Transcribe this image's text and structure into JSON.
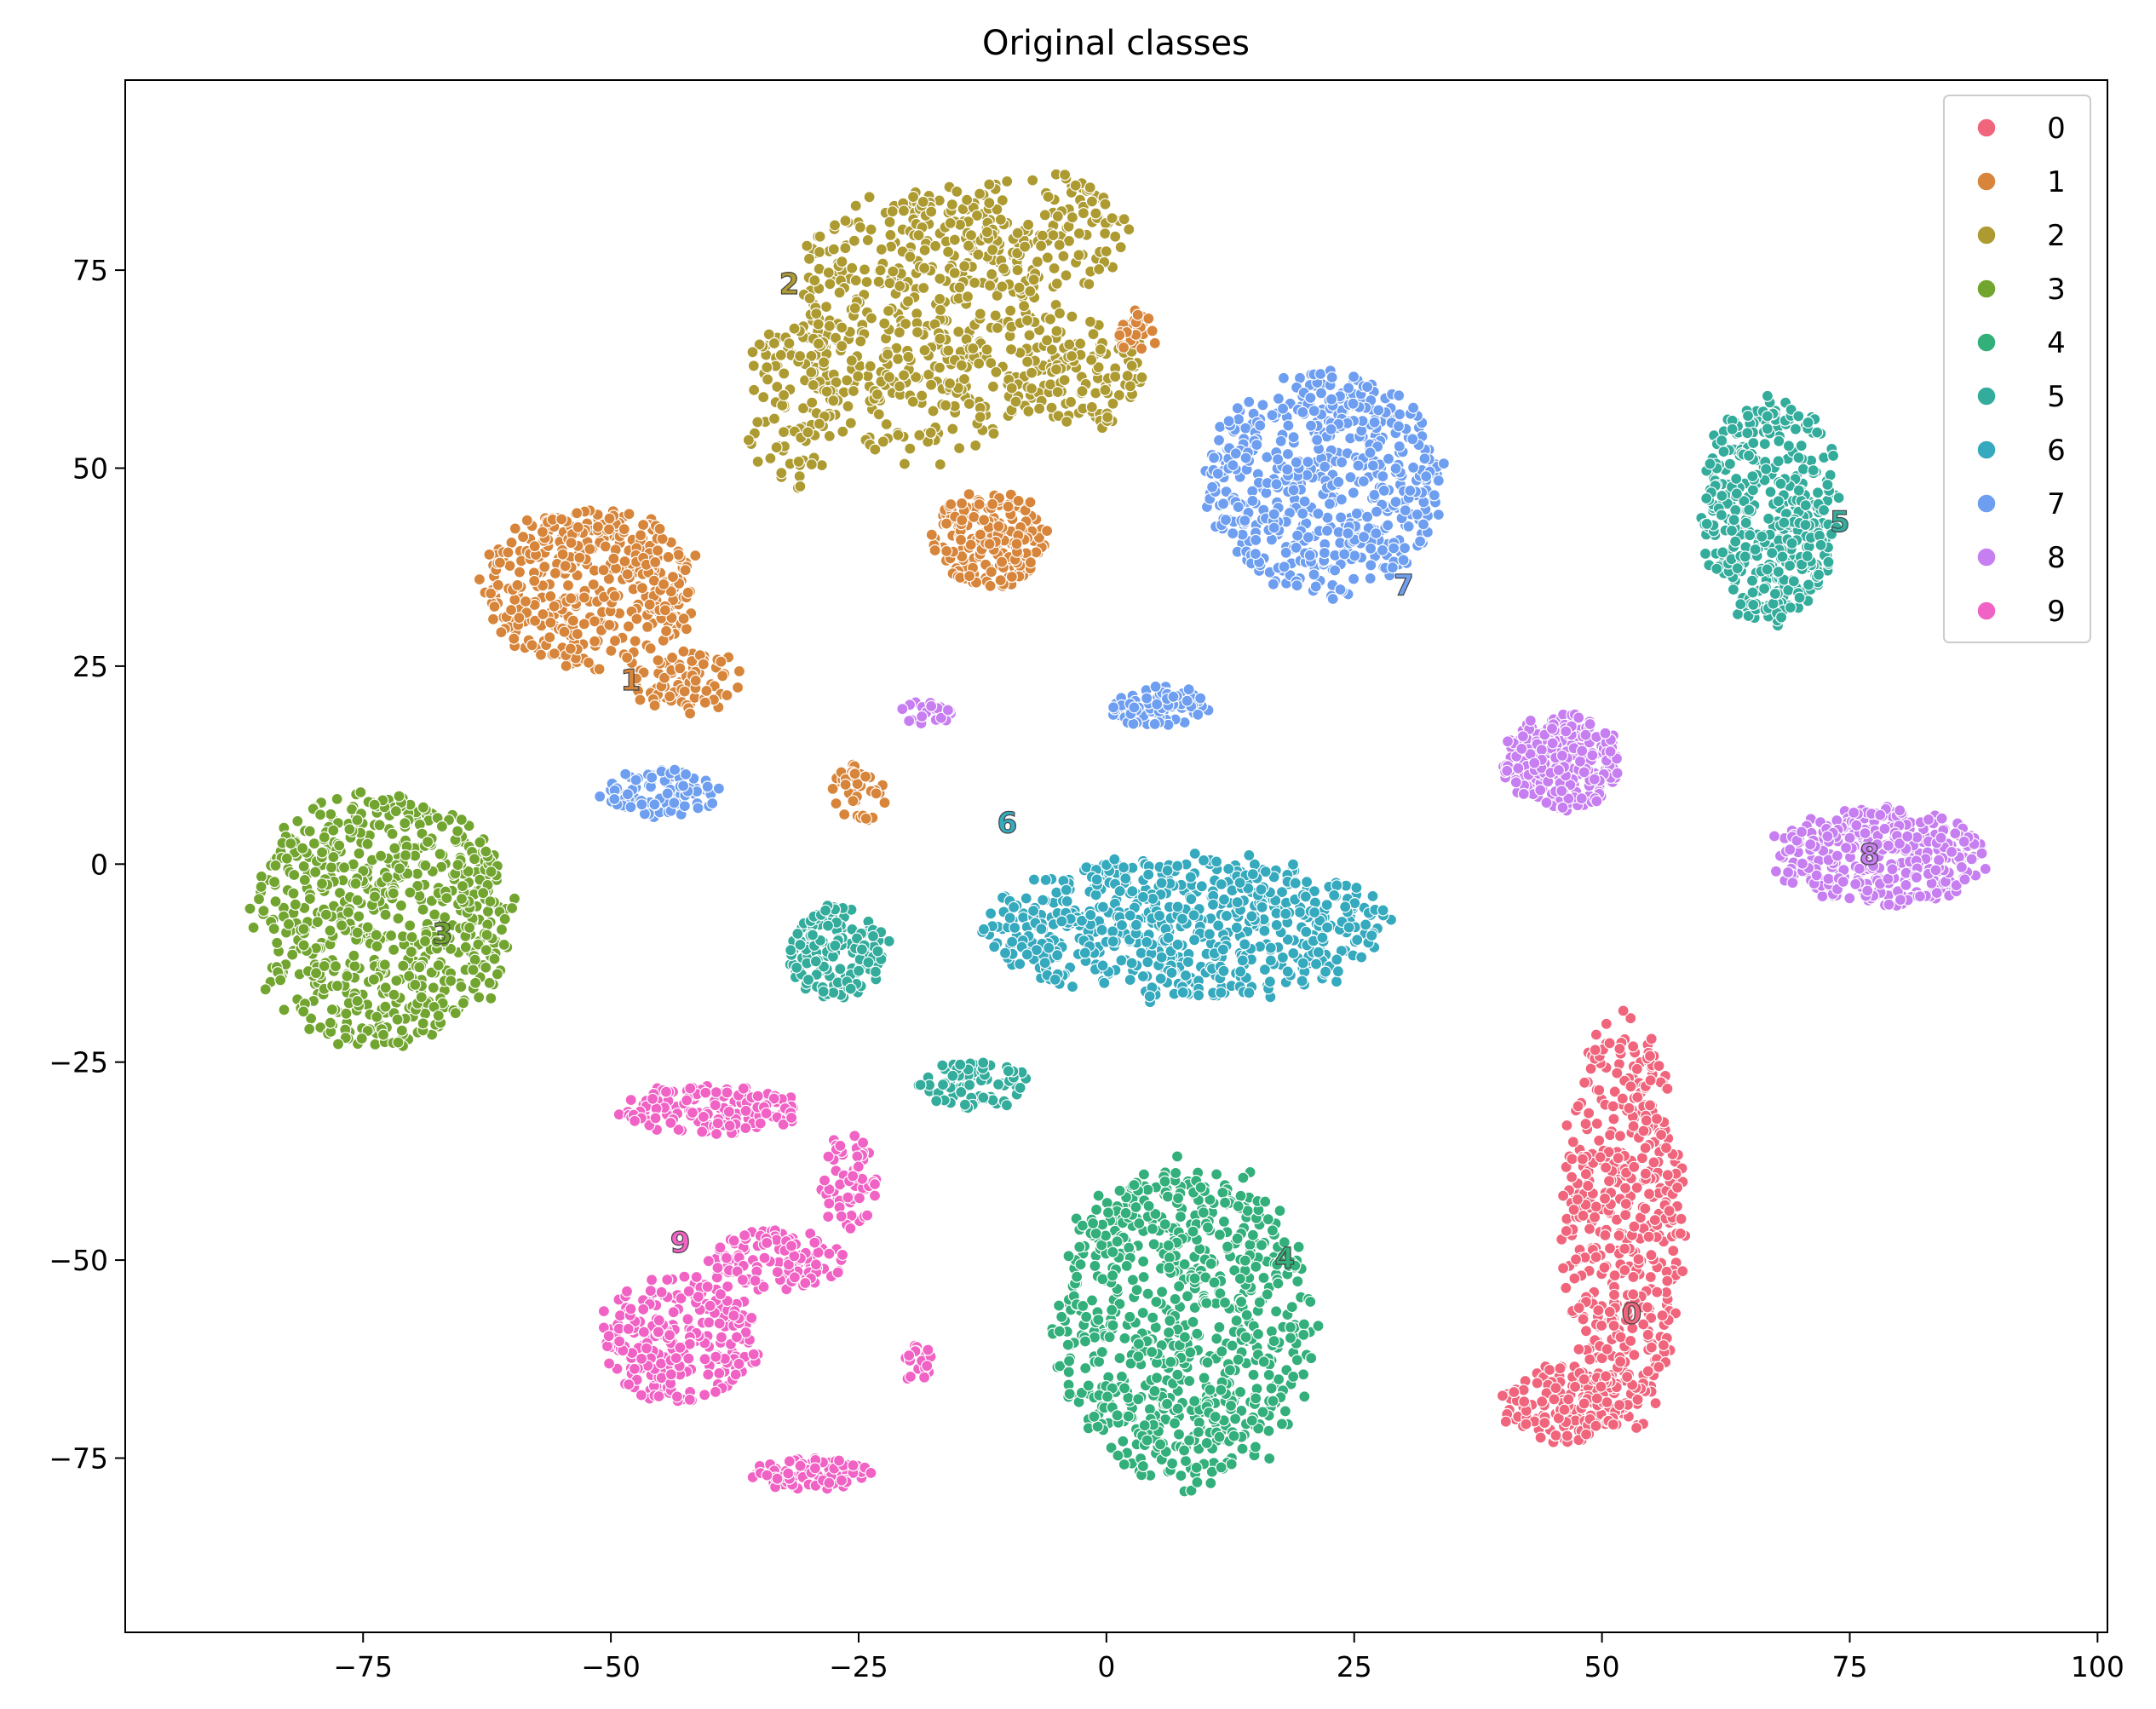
{
  "chart_data": {
    "type": "scatter",
    "title": "Original classes",
    "xlabel": "",
    "ylabel": "",
    "xlim": [
      -99,
      101
    ],
    "ylim": [
      -97,
      99
    ],
    "x_ticks": [
      -75,
      -50,
      -25,
      0,
      25,
      50,
      75,
      100
    ],
    "y_ticks": [
      75,
      50,
      25,
      0,
      -25,
      -50,
      -75
    ],
    "x_tick_labels": [
      "−75",
      "−50",
      "−25",
      "0",
      "25",
      "50",
      "75",
      "100"
    ],
    "y_tick_labels": [
      "75",
      "50",
      "25",
      "0",
      "−25",
      "−50",
      "−75"
    ],
    "grid": false,
    "legend_position": "top-right",
    "series": [
      {
        "name": "0",
        "color": "#f0657c"
      },
      {
        "name": "1",
        "color": "#d7853a"
      },
      {
        "name": "2",
        "color": "#ad9b32"
      },
      {
        "name": "3",
        "color": "#72a530"
      },
      {
        "name": "4",
        "color": "#32af7a"
      },
      {
        "name": "5",
        "color": "#33ac9c"
      },
      {
        "name": "6",
        "color": "#35a9bd"
      },
      {
        "name": "7",
        "color": "#6e9ef0"
      },
      {
        "name": "8",
        "color": "#c77ef0"
      },
      {
        "name": "9",
        "color": "#f162c5"
      }
    ],
    "clusters": [
      {
        "cls": 2,
        "cx": -18,
        "cy": 68,
        "rx": 14,
        "ry": 17,
        "n": 500
      },
      {
        "cls": 2,
        "cx": -32,
        "cy": 58,
        "rx": 5,
        "ry": 10,
        "n": 110
      },
      {
        "cls": 2,
        "cx": -7,
        "cy": 80,
        "rx": 9,
        "ry": 8,
        "n": 130
      },
      {
        "cls": 2,
        "cx": -2,
        "cy": 62,
        "rx": 6,
        "ry": 7,
        "n": 110
      },
      {
        "cls": 1,
        "cx": -52,
        "cy": 35,
        "rx": 11,
        "ry": 10,
        "n": 420
      },
      {
        "cls": 1,
        "cx": -42,
        "cy": 23,
        "rx": 6,
        "ry": 4,
        "n": 80
      },
      {
        "cls": 1,
        "cx": -12,
        "cy": 41,
        "rx": 6,
        "ry": 6,
        "n": 180
      },
      {
        "cls": 1,
        "cx": 3,
        "cy": 67,
        "rx": 2,
        "ry": 3,
        "n": 25
      },
      {
        "cls": 1,
        "cx": -25,
        "cy": 9,
        "rx": 3,
        "ry": 4,
        "n": 40
      },
      {
        "cls": 7,
        "cx": 22,
        "cy": 48,
        "rx": 12,
        "ry": 14,
        "n": 560
      },
      {
        "cls": 7,
        "cx": -45,
        "cy": 9,
        "rx": 6,
        "ry": 3,
        "n": 90
      },
      {
        "cls": 7,
        "cx": 5,
        "cy": 20,
        "rx": 5,
        "ry": 2.5,
        "n": 80
      },
      {
        "cls": 5,
        "cx": 67,
        "cy": 45,
        "rx": 7,
        "ry": 14,
        "n": 420
      },
      {
        "cls": 5,
        "cx": -27,
        "cy": -11,
        "rx": 5,
        "ry": 6,
        "n": 150
      },
      {
        "cls": 5,
        "cx": -13,
        "cy": -28,
        "rx": 6,
        "ry": 3,
        "n": 80
      },
      {
        "cls": 3,
        "cx": -73,
        "cy": -7,
        "rx": 13,
        "ry": 16,
        "n": 650
      },
      {
        "cls": 6,
        "cx": 8,
        "cy": -8,
        "rx": 20,
        "ry": 9,
        "n": 650
      },
      {
        "cls": 8,
        "cx": 46,
        "cy": 13,
        "rx": 6,
        "ry": 6,
        "n": 280
      },
      {
        "cls": 8,
        "cx": 78,
        "cy": 1,
        "rx": 11,
        "ry": 6,
        "n": 360
      },
      {
        "cls": 8,
        "cx": -18,
        "cy": 19,
        "rx": 3,
        "ry": 1.5,
        "n": 20
      },
      {
        "cls": 0,
        "cx": 52,
        "cy": -45,
        "rx": 6,
        "ry": 26,
        "n": 480
      },
      {
        "cls": 0,
        "cx": 46,
        "cy": -68,
        "rx": 6,
        "ry": 5,
        "n": 150
      },
      {
        "cls": 4,
        "cx": 8,
        "cy": -58,
        "rx": 13,
        "ry": 20,
        "n": 750
      },
      {
        "cls": 9,
        "cx": -43,
        "cy": -60,
        "rx": 8,
        "ry": 8,
        "n": 260
      },
      {
        "cls": 9,
        "cx": -33,
        "cy": -50,
        "rx": 7,
        "ry": 4,
        "n": 120
      },
      {
        "cls": 9,
        "cx": -26,
        "cy": -40,
        "rx": 3,
        "ry": 6,
        "n": 60
      },
      {
        "cls": 9,
        "cx": -40,
        "cy": -31,
        "rx": 9,
        "ry": 3,
        "n": 150
      },
      {
        "cls": 9,
        "cx": -30,
        "cy": -77,
        "rx": 6,
        "ry": 2,
        "n": 100
      },
      {
        "cls": 9,
        "cx": -19,
        "cy": -63,
        "rx": 1.5,
        "ry": 3,
        "n": 20
      }
    ],
    "annotations": [
      {
        "text": "0",
        "x": 53,
        "y": -57,
        "cls": 0
      },
      {
        "text": "1",
        "x": -48,
        "y": 23,
        "cls": 1
      },
      {
        "text": "2",
        "x": -32,
        "y": 73,
        "cls": 2
      },
      {
        "text": "3",
        "x": -67,
        "y": -9,
        "cls": 3
      },
      {
        "text": "4",
        "x": 18,
        "y": -50,
        "cls": 4
      },
      {
        "text": "5",
        "x": 74,
        "y": 43,
        "cls": 5
      },
      {
        "text": "6",
        "x": -10,
        "y": 5,
        "cls": 6
      },
      {
        "text": "7",
        "x": 30,
        "y": 35,
        "cls": 7
      },
      {
        "text": "8",
        "x": 77,
        "y": 1,
        "cls": 8
      },
      {
        "text": "9",
        "x": -43,
        "y": -48,
        "cls": 9
      }
    ]
  }
}
